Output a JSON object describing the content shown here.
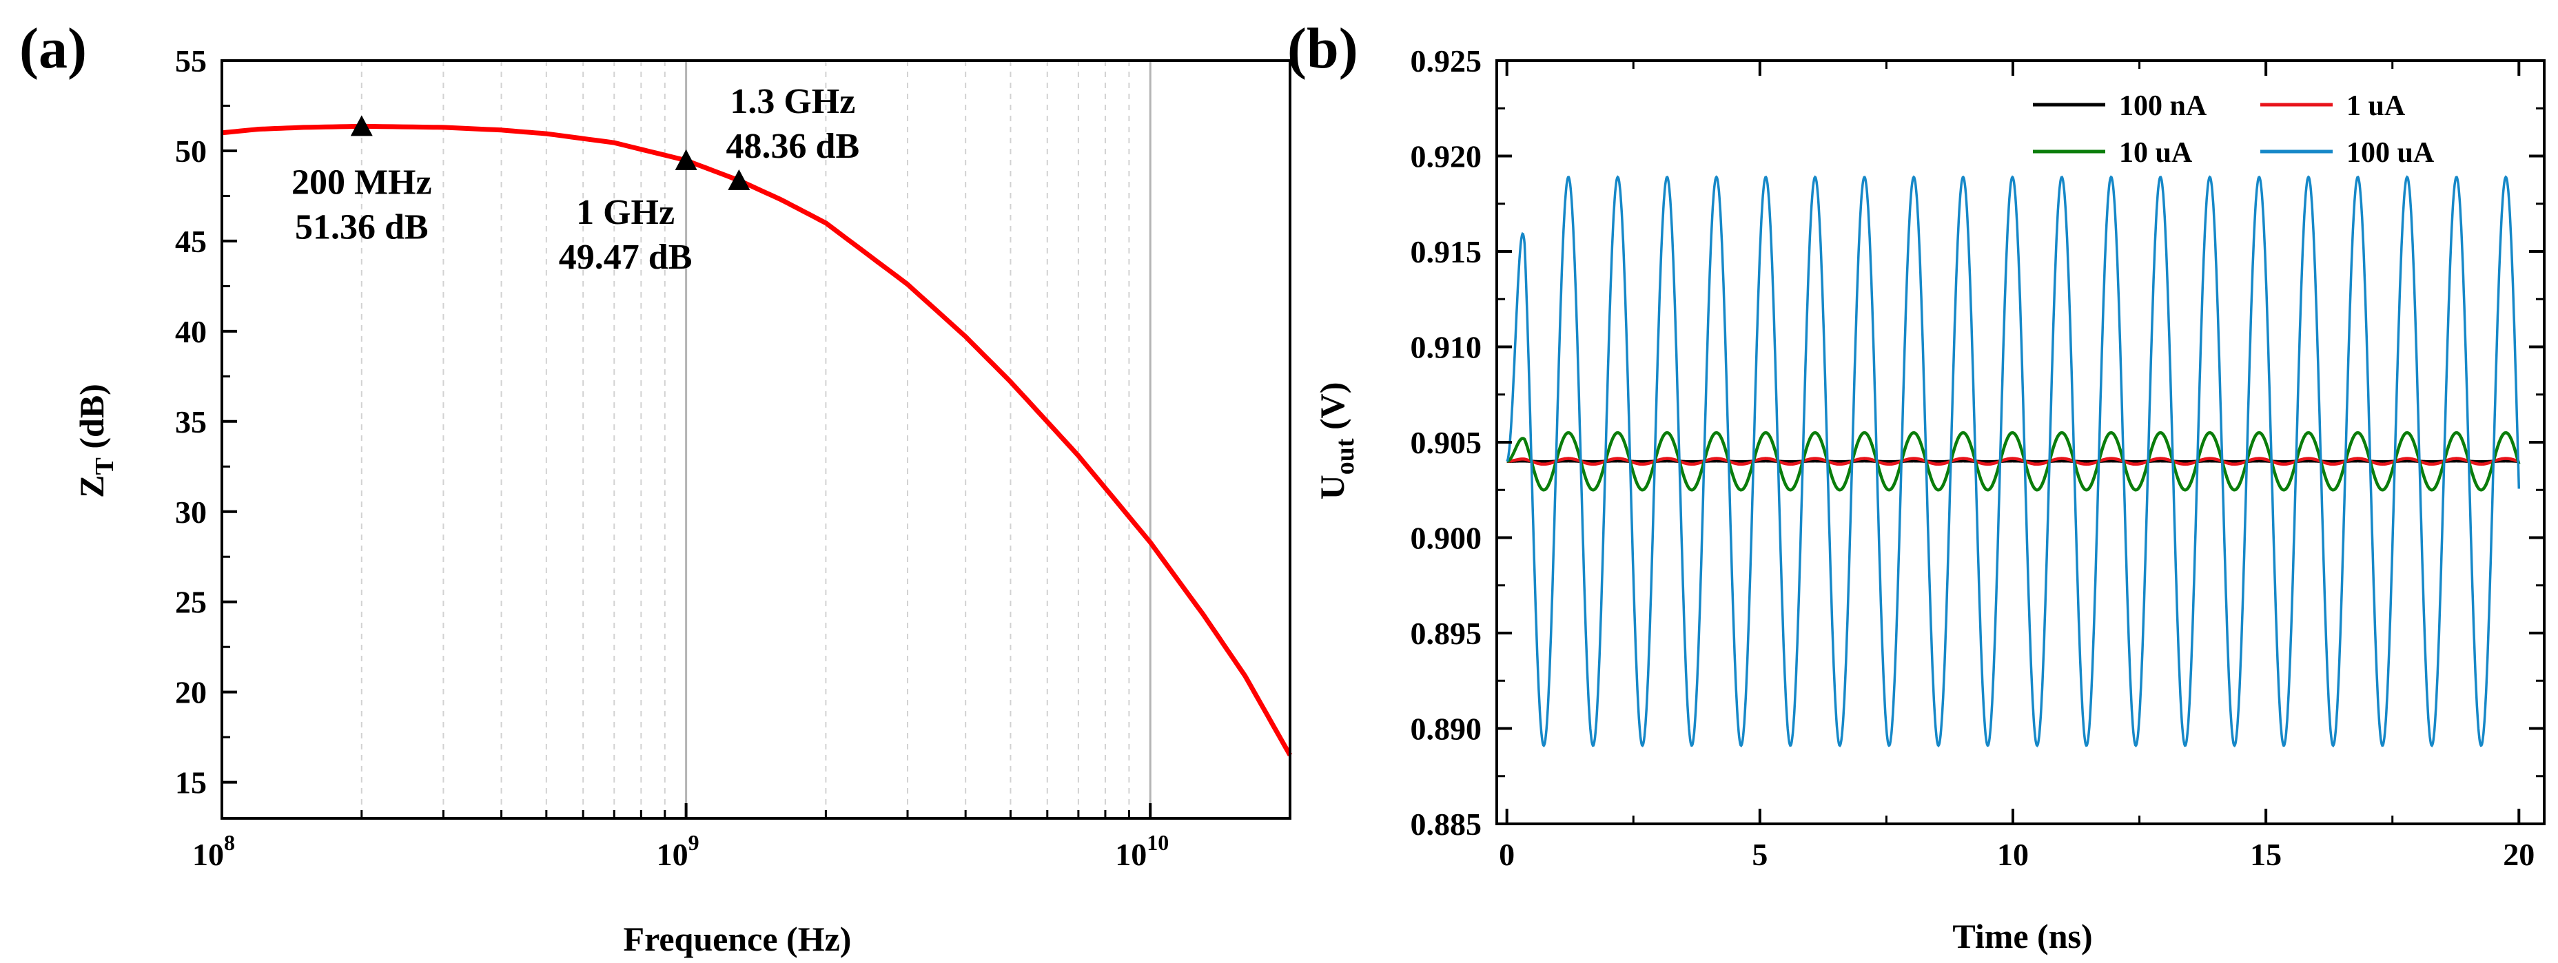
{
  "chart_data": [
    {
      "panel": "(a)",
      "type": "line",
      "title": "",
      "xlabel": "Frequence (Hz)",
      "ylabel_main": "Z",
      "ylabel_sub": "T",
      "ylabel_unit": " (dB)",
      "xscale": "log",
      "xlim": [
        100000000,
        20000000000
      ],
      "ylim": [
        13,
        55
      ],
      "ytick_values": [
        15,
        20,
        25,
        30,
        35,
        40,
        45,
        50,
        55
      ],
      "xtick_values": [
        100000000,
        1000000000,
        10000000000
      ],
      "xtick_labels": [
        {
          "base": "10",
          "exp": "8"
        },
        {
          "base": "10",
          "exp": "9"
        },
        {
          "base": "10",
          "exp": "10"
        }
      ],
      "grid": "vertical",
      "series": [
        {
          "name": "Z_T",
          "color": "#ff0000",
          "x": [
            100000000,
            120000000,
            150000000,
            200000000,
            300000000,
            400000000,
            500000000,
            700000000,
            1000000000,
            1300000000,
            1600000000,
            2000000000,
            3000000000,
            4000000000,
            5000000000,
            7000000000,
            10000000000,
            13000000000,
            16000000000,
            20000000000
          ],
          "values": [
            51.0,
            51.2,
            51.3,
            51.36,
            51.3,
            51.15,
            50.95,
            50.45,
            49.47,
            48.36,
            47.3,
            46.0,
            42.6,
            39.7,
            37.2,
            33.1,
            28.3,
            24.3,
            20.9,
            16.5
          ]
        }
      ],
      "markers": [
        {
          "x": 200000000,
          "y": 51.36,
          "line1": "200 MHz",
          "line2": "51.36 dB",
          "pos": "below"
        },
        {
          "x": 1000000000,
          "y": 49.47,
          "line1": "1 GHz",
          "line2": "49.47 dB",
          "pos": "below-left"
        },
        {
          "x": 1300000000,
          "y": 48.36,
          "line1": "1.3 GHz",
          "line2": "48.36 dB",
          "pos": "above-right"
        }
      ]
    },
    {
      "panel": "(b)",
      "type": "line",
      "title": "",
      "xlabel": "Time (ns)",
      "ylabel_main": "U",
      "ylabel_sub": "out",
      "ylabel_unit": " (V)",
      "xlim": [
        -0.2,
        20.5
      ],
      "ylim": [
        0.885,
        0.925
      ],
      "ytick_values": [
        0.885,
        0.89,
        0.895,
        0.9,
        0.905,
        0.91,
        0.915,
        0.92,
        0.925
      ],
      "ytick_labels": [
        "0.885",
        "0.890",
        "0.895",
        "0.900",
        "0.905",
        "0.910",
        "0.915",
        "0.920",
        "0.925"
      ],
      "xtick_values": [
        0,
        5,
        10,
        15,
        20
      ],
      "xtick_labels": [
        "0",
        "5",
        "10",
        "15",
        "20"
      ],
      "grid": "none",
      "legend_position": "top-right",
      "signal": {
        "offset": 0.904,
        "period_ns": 0.975,
        "t_end": 20,
        "start_value": 0.904
      },
      "series": [
        {
          "name": "100 nA",
          "color": "#000000",
          "amplitude": 2e-05
        },
        {
          "name": "1 uA",
          "color": "#e8141b",
          "amplitude": 0.00015
        },
        {
          "name": "10 uA",
          "color": "#0a7d0a",
          "amplitude": 0.0015
        },
        {
          "name": "100 uA",
          "color": "#1688c8",
          "amplitude": 0.0149
        }
      ]
    }
  ]
}
